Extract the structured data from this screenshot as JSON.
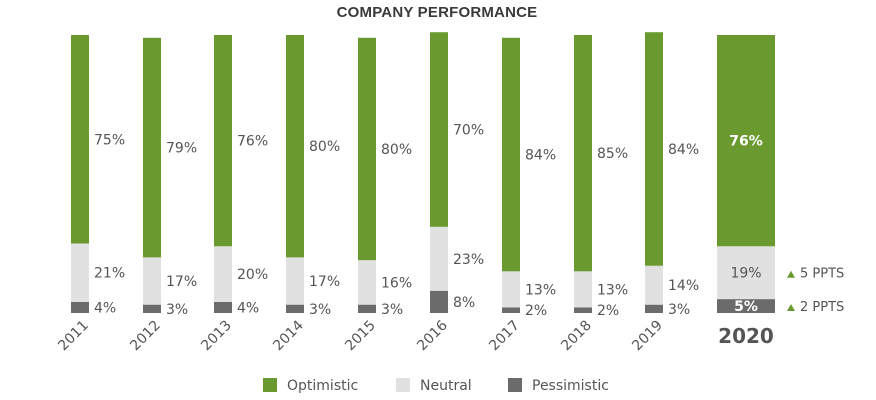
{
  "chart_data": {
    "type": "bar",
    "stacked": true,
    "title": "COMPANY PERFORMANCE",
    "categories": [
      "2011",
      "2012",
      "2013",
      "2014",
      "2015",
      "2016",
      "2017",
      "2018",
      "2019",
      "2020"
    ],
    "highlight_category": "2020",
    "series": [
      {
        "name": "Optimistic",
        "color": "#6a9a2f",
        "values": [
          75,
          79,
          76,
          80,
          80,
          70,
          84,
          85,
          84,
          76
        ]
      },
      {
        "name": "Neutral",
        "color": "#e1e1e1",
        "values": [
          21,
          17,
          20,
          17,
          16,
          23,
          13,
          13,
          14,
          19
        ]
      },
      {
        "name": "Pessimistic",
        "color": "#6b6b6b",
        "values": [
          4,
          3,
          4,
          3,
          3,
          8,
          2,
          2,
          3,
          5
        ]
      }
    ],
    "annotations": [
      {
        "series": "Neutral",
        "category": "2020",
        "text": "5 PPTS",
        "direction": "up",
        "color": "#6a9a2f"
      },
      {
        "series": "Pessimistic",
        "category": "2020",
        "text": "2 PPTS",
        "direction": "up",
        "color": "#6a9a2f"
      }
    ],
    "legend_position": "bottom",
    "ylim": [
      0,
      100
    ]
  }
}
